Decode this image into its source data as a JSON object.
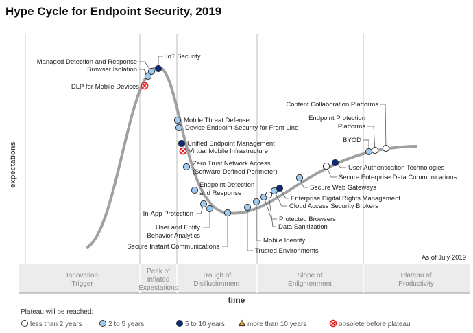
{
  "title": "Hype Cycle for Endpoint Security, 2019",
  "y_axis_label": "expectations",
  "x_axis_label": "time",
  "as_of": "As of July 2019",
  "stages": [
    "Innovation Trigger",
    "Peak of Inflated Expectations",
    "Trough of Disillusionment",
    "Slope of Enlightenment",
    "Plateau of Productivity"
  ],
  "stage_lines": [
    [
      "Innovation",
      "Trigger"
    ],
    [
      "Peak of",
      "Inflated",
      "Expectations"
    ],
    [
      "Trough of",
      "Disillusionment"
    ],
    [
      "Slope of",
      "Enlightenment"
    ],
    [
      "Plateau of",
      "Productivity"
    ]
  ],
  "colors": {
    "less_than_2": "#ffffff",
    "2_to_5": "#9fcbf2",
    "5_to_10": "#0a2a80",
    "more_than_10": "#f0a020",
    "obsolete": "#e02020",
    "curve": "#a0a0a0"
  },
  "legend": {
    "title": "Plateau will be reached:",
    "items": [
      {
        "key": "less_than_2",
        "label": "less than 2 years"
      },
      {
        "key": "2_to_5",
        "label": "2 to 5 years"
      },
      {
        "key": "5_to_10",
        "label": "5 to 10 years"
      },
      {
        "key": "more_than_10",
        "label": "more than 10 years"
      },
      {
        "key": "obsolete",
        "label": "obsolete before plateau"
      }
    ]
  },
  "items": [
    {
      "lines": [
        "Managed Detection and Response"
      ],
      "plateau": "2_to_5"
    },
    {
      "lines": [
        "Browser Isolation"
      ],
      "plateau": "2_to_5"
    },
    {
      "lines": [
        "DLP for Mobile Devices"
      ],
      "plateau": "obsolete"
    },
    {
      "lines": [
        "IoT Security"
      ],
      "plateau": "5_to_10"
    },
    {
      "lines": [
        "Mobile Threat Defense"
      ],
      "plateau": "2_to_5"
    },
    {
      "lines": [
        "Device Endpoint Security for Front Line"
      ],
      "plateau": "2_to_5"
    },
    {
      "lines": [
        "Unified Endpoint Management"
      ],
      "plateau": "5_to_10"
    },
    {
      "lines": [
        "Virtual Mobile Infrastructure"
      ],
      "plateau": "obsolete"
    },
    {
      "lines": [
        "Zero Trust Network Access",
        "(Software-Defined Perimeter)"
      ],
      "plateau": "2_to_5"
    },
    {
      "lines": [
        "Endpoint Detection",
        "and Response"
      ],
      "plateau": "2_to_5"
    },
    {
      "lines": [
        "In-App Protection"
      ],
      "plateau": "2_to_5"
    },
    {
      "lines": [
        "User and Entity",
        "Behavior Analytics"
      ],
      "plateau": "2_to_5"
    },
    {
      "lines": [
        "Secure Instant Communications"
      ],
      "plateau": "2_to_5"
    },
    {
      "lines": [
        "Trusted Environments"
      ],
      "plateau": "2_to_5"
    },
    {
      "lines": [
        "Mobile Identity"
      ],
      "plateau": "2_to_5"
    },
    {
      "lines": [
        "Protected Browsers"
      ],
      "plateau": "2_to_5"
    },
    {
      "lines": [
        "Data Sanitization"
      ],
      "plateau": "less_than_2"
    },
    {
      "lines": [
        "Cloud Access Security Brokers"
      ],
      "plateau": "2_to_5"
    },
    {
      "lines": [
        "Enterprise Digital Rights Management"
      ],
      "plateau": "5_to_10"
    },
    {
      "lines": [
        "Secure Web Gateways"
      ],
      "plateau": "2_to_5"
    },
    {
      "lines": [
        "Secure Enterprise Data Communications"
      ],
      "plateau": "less_than_2"
    },
    {
      "lines": [
        "User Authentication Technologies"
      ],
      "plateau": "5_to_10"
    },
    {
      "lines": [
        "BYOD"
      ],
      "plateau": "2_to_5"
    },
    {
      "lines": [
        "Endpoint Protection",
        "Platforms"
      ],
      "plateau": "less_than_2"
    },
    {
      "lines": [
        "Content Collaboration Platforms"
      ],
      "plateau": "less_than_2"
    }
  ]
}
